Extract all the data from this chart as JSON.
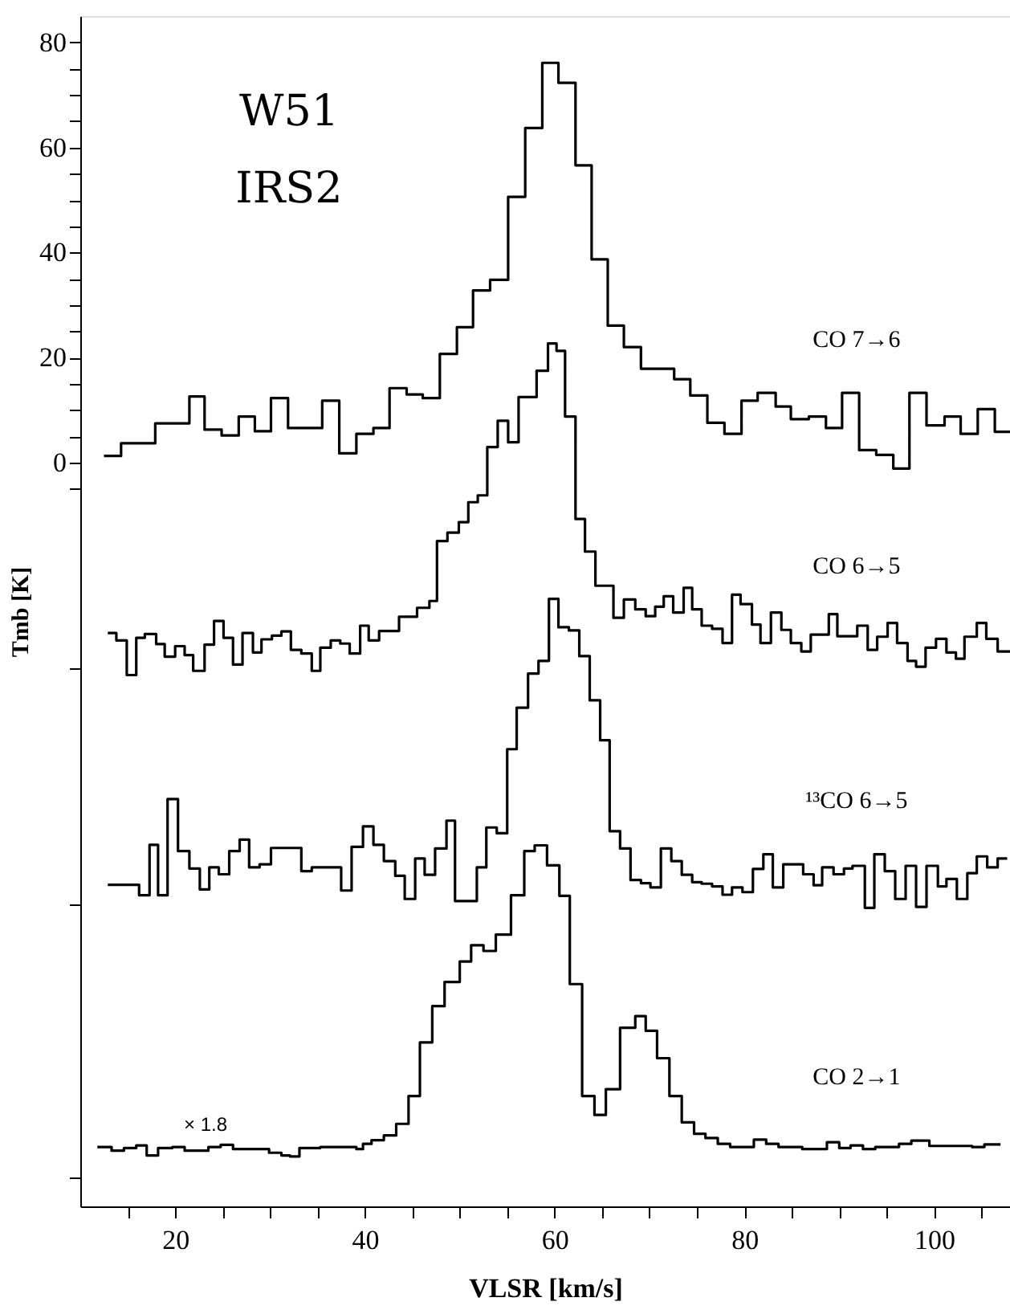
{
  "chart_data": {
    "type": "step",
    "title": "W51",
    "subtitle": "IRS2",
    "xlabel": "VLSR [km/s]",
    "ylabel": "Tmb [K]",
    "xlim": [
      10,
      108
    ],
    "ylim": [
      -141.5,
      85
    ],
    "xticks": [
      {
        "value": 15,
        "label": null
      },
      20,
      {
        "value": 25,
        "label": null
      },
      {
        "value": 30,
        "label": null
      },
      {
        "value": 35,
        "label": null
      },
      40,
      {
        "value": 45,
        "label": null
      },
      {
        "value": 50,
        "label": null
      },
      {
        "value": 55,
        "label": null
      },
      60,
      {
        "value": 65,
        "label": null
      },
      {
        "value": 70,
        "label": null
      },
      {
        "value": 75,
        "label": null
      },
      80,
      {
        "value": 85,
        "label": null
      },
      {
        "value": 90,
        "label": null
      },
      {
        "value": 95,
        "label": null
      },
      100,
      {
        "value": 105,
        "label": null
      }
    ],
    "yticks": [
      {
        "value": -136,
        "label": null
      },
      {
        "value": -84,
        "label": null
      },
      {
        "value": -39,
        "label": null
      },
      {
        "value": -5,
        "label": null
      },
      0,
      {
        "value": 5,
        "label": null
      },
      {
        "value": 10,
        "label": null
      },
      {
        "value": 15,
        "label": null
      },
      20,
      {
        "value": 25,
        "label": null
      },
      {
        "value": 30,
        "label": null
      },
      {
        "value": 35,
        "label": null
      },
      40,
      {
        "value": 45,
        "label": null
      },
      {
        "value": 50,
        "label": null
      },
      {
        "value": 55,
        "label": null
      },
      60,
      {
        "value": 65,
        "label": null
      },
      {
        "value": 70,
        "label": null
      },
      {
        "value": 75,
        "label": null
      },
      80
    ],
    "grid": false,
    "legend": false,
    "line_style": "solid",
    "marker": "none",
    "annotations": [
      "× 1.8"
    ],
    "series": [
      {
        "name": "CO 7→6",
        "color": "#000000",
        "x": [
          12.5,
          14.3,
          17.9,
          21.5,
          23.1,
          24.9,
          26.7,
          28.4,
          30.1,
          31.9,
          35.5,
          37.3,
          39.1,
          40.9,
          42.6,
          44.4,
          46.1,
          47.9,
          49.7,
          51.4,
          53.2,
          55.1,
          56.9,
          58.7,
          60.4,
          62.2,
          63.9,
          65.6,
          67.3,
          69.1,
          72.6,
          74.3,
          76.1,
          77.9,
          79.7,
          81.4,
          83.3,
          84.9,
          86.8,
          88.6,
          90.3,
          92.1,
          93.9,
          95.7,
          97.4,
          99.2,
          101.1,
          102.8,
          104.6,
          106.4,
          108.0
        ],
        "values": [
          1.3,
          3.7,
          7.5,
          12.6,
          6.3,
          5.2,
          8.8,
          6.0,
          12.3,
          6.6,
          11.8,
          1.8,
          5.5,
          6.6,
          14.2,
          13.0,
          12.3,
          20.7,
          25.8,
          32.8,
          34.8,
          50.6,
          63.7,
          76.1,
          72.3,
          56.6,
          38.7,
          26.1,
          22.0,
          17.9,
          15.9,
          12.8,
          7.6,
          5.5,
          11.8,
          13.3,
          10.7,
          8.3,
          8.8,
          6.6,
          13.3,
          2.4,
          1.5,
          -1.1,
          13.3,
          7.1,
          8.8,
          5.5,
          10.2,
          5.9,
          5.9
        ]
      },
      {
        "name": "CO 6→5",
        "color": "#000000",
        "x": [
          12.9,
          13.8,
          14.9,
          15.9,
          16.8,
          18.0,
          18.9,
          20.0,
          21.0,
          21.9,
          23.1,
          24.1,
          25.1,
          26.1,
          27.1,
          28.2,
          29.1,
          30.2,
          31.2,
          32.2,
          33.3,
          34.4,
          35.3,
          36.4,
          37.4,
          38.4,
          39.5,
          40.4,
          41.5,
          43.6,
          45.5,
          46.8,
          47.6,
          48.7,
          49.9,
          50.9,
          51.9,
          52.9,
          54.0,
          55.1,
          56.2,
          58.1,
          59.3,
          60.2,
          61.1,
          62.2,
          63.2,
          64.3,
          66.2,
          67.3,
          68.5,
          69.6,
          70.6,
          71.5,
          72.5,
          73.6,
          74.5,
          75.5,
          76.6,
          77.7,
          78.7,
          79.6,
          80.8,
          81.7,
          82.8,
          83.9,
          84.9,
          86.0,
          87.0,
          88.9,
          89.8,
          91.9,
          93.0,
          94.0,
          95.1,
          96.1,
          97.2,
          98.1,
          99.1,
          100.2,
          101.3,
          102.3,
          103.2,
          104.5,
          105.5,
          106.7,
          108.0
        ],
        "values": [
          -32.4,
          -33.8,
          -40.4,
          -33.3,
          -32.6,
          -34.5,
          -36.9,
          -34.9,
          -36.6,
          -39.6,
          -34.6,
          -30.1,
          -33.3,
          -38.4,
          -32.4,
          -36.1,
          -33.6,
          -32.9,
          -32.1,
          -35.6,
          -36.3,
          -39.6,
          -35.2,
          -33.8,
          -34.4,
          -36.3,
          -31.0,
          -33.8,
          -32.0,
          -29.3,
          -27.6,
          -26.3,
          -14.9,
          -13.3,
          -11.3,
          -7.5,
          -6.2,
          3.0,
          8.0,
          3.9,
          12.5,
          17.5,
          22.7,
          21.3,
          8.8,
          -10.7,
          -16.9,
          -23.4,
          -29.5,
          -26.0,
          -27.9,
          -29.2,
          -27.4,
          -25.4,
          -28.5,
          -23.8,
          -27.9,
          -31.0,
          -31.6,
          -34.3,
          -25.1,
          -26.9,
          -30.8,
          -34.3,
          -28.5,
          -31.8,
          -34.3,
          -35.9,
          -32.7,
          -28.8,
          -33.0,
          -31.0,
          -35.6,
          -33.1,
          -30.5,
          -34.3,
          -37.7,
          -38.8,
          -35.2,
          -33.5,
          -36.1,
          -37.3,
          -33.1,
          -30.5,
          -33.5,
          -35.9,
          -35.9
        ]
      },
      {
        "name": "¹³CO 6→5",
        "color": "#000000",
        "x": [
          12.9,
          16.2,
          17.3,
          18.2,
          19.2,
          20.3,
          21.5,
          22.6,
          23.6,
          24.6,
          25.7,
          26.8,
          27.8,
          28.9,
          30.1,
          33.3,
          34.4,
          37.5,
          38.6,
          39.8,
          40.9,
          42.0,
          43.2,
          44.2,
          45.3,
          46.3,
          47.4,
          48.6,
          49.5,
          51.8,
          52.8,
          53.9,
          55.0,
          56.0,
          57.2,
          58.3,
          59.4,
          60.4,
          61.5,
          62.6,
          63.7,
          64.8,
          65.8,
          66.9,
          68.0,
          69.1,
          70.1,
          71.2,
          72.3,
          73.4,
          74.5,
          75.5,
          76.6,
          77.7,
          78.7,
          79.8,
          80.9,
          82.0,
          83.0,
          84.1,
          86.2,
          87.3,
          88.2,
          89.4,
          90.5,
          91.4,
          92.7,
          93.7,
          94.8,
          95.9,
          97.0,
          98.1,
          99.2,
          100.4,
          101.3,
          102.4,
          103.5,
          104.5,
          105.6,
          106.7,
          107.7
        ],
        "values": [
          -80.3,
          -82.3,
          -72.7,
          -82.3,
          -64.0,
          -73.9,
          -77.2,
          -81.2,
          -77.0,
          -78.3,
          -73.9,
          -71.7,
          -77.0,
          -76.4,
          -73.3,
          -77.7,
          -77.0,
          -81.4,
          -73.1,
          -69.2,
          -72.7,
          -75.8,
          -78.6,
          -83.0,
          -75.3,
          -78.4,
          -73.4,
          -68.1,
          -83.4,
          -77.0,
          -69.4,
          -70.5,
          -54.5,
          -46.6,
          -40.1,
          -37.7,
          -25.9,
          -31.3,
          -31.9,
          -36.8,
          -45.2,
          -52.8,
          -70.1,
          -73.4,
          -79.4,
          -80.0,
          -80.8,
          -73.4,
          -75.8,
          -78.4,
          -79.8,
          -80.1,
          -80.6,
          -82.2,
          -80.8,
          -81.7,
          -77.3,
          -74.5,
          -80.8,
          -76.4,
          -78.3,
          -80.4,
          -77.0,
          -78.3,
          -77.2,
          -76.7,
          -84.7,
          -74.5,
          -77.7,
          -83.0,
          -76.7,
          -84.5,
          -76.7,
          -80.6,
          -79.2,
          -83.0,
          -78.1,
          -74.9,
          -77.0,
          -75.3,
          -75.3
        ]
      },
      {
        "name": "CO 2→1",
        "color": "#000000",
        "x": [
          11.8,
          13.3,
          14.6,
          15.9,
          17.0,
          18.2,
          19.7,
          21.0,
          23.5,
          24.8,
          26.1,
          29.9,
          31.2,
          32.1,
          33.1,
          35.3,
          39.1,
          39.8,
          40.7,
          42.0,
          43.3,
          44.6,
          45.8,
          47.1,
          48.4,
          50.0,
          51.2,
          52.5,
          53.8,
          55.4,
          56.8,
          57.9,
          59.2,
          60.5,
          61.6,
          62.9,
          64.2,
          65.4,
          66.9,
          68.5,
          69.6,
          70.8,
          72.1,
          73.4,
          74.7,
          75.9,
          77.2,
          78.5,
          81.0,
          82.3,
          83.6,
          86.1,
          88.7,
          90.0,
          91.2,
          92.5,
          93.8,
          96.3,
          97.6,
          99.5,
          104.0,
          105.3,
          107.0
        ],
        "values": [
          -130.2,
          -130.9,
          -130.4,
          -129.9,
          -131.8,
          -130.4,
          -130.2,
          -130.9,
          -130.2,
          -129.8,
          -130.6,
          -131.3,
          -131.8,
          -132.0,
          -130.4,
          -130.2,
          -130.6,
          -129.6,
          -128.9,
          -128.0,
          -125.8,
          -120.5,
          -110.3,
          -103.4,
          -98.8,
          -94.9,
          -91.8,
          -92.9,
          -89.8,
          -82.3,
          -73.9,
          -72.8,
          -76.6,
          -82.4,
          -99.2,
          -120.5,
          -124.1,
          -119.2,
          -107.5,
          -105.3,
          -108.1,
          -113.3,
          -120.5,
          -125.5,
          -127.7,
          -128.5,
          -129.6,
          -130.2,
          -128.8,
          -129.6,
          -130.2,
          -130.6,
          -129.3,
          -130.4,
          -129.9,
          -130.6,
          -130.2,
          -129.6,
          -129.0,
          -130.0,
          -130.2,
          -129.7,
          -129.7
        ]
      }
    ]
  }
}
